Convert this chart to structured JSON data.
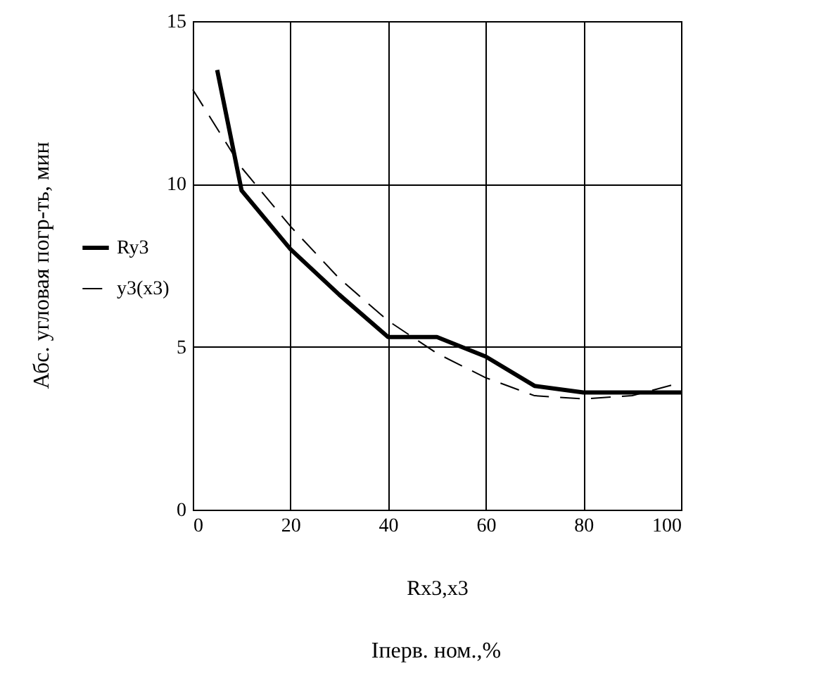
{
  "chart_data": {
    "type": "line",
    "xlabel": "Rx3,x3",
    "ylabel": "Абс. угловая погр-ть, мин",
    "annotations": [
      "Iперв. ном.,%"
    ],
    "series": [
      {
        "name": "Ry3",
        "color": "#000000",
        "line_style": "solid",
        "x": [
          5,
          10,
          20,
          30,
          40,
          50,
          60,
          70,
          80,
          90,
          100
        ],
        "values": [
          13.5,
          9.8,
          8,
          6.6,
          5.3,
          5.3,
          4.7,
          3.8,
          3.6,
          3.6,
          3.6
        ]
      },
      {
        "name": "y3(x3)",
        "color": "#000000",
        "line_style": "dashed",
        "x": [
          0,
          10,
          20,
          30,
          40,
          50,
          60,
          70,
          80,
          90,
          100
        ],
        "values": [
          12.9,
          10.5,
          8.7,
          7.1,
          5.8,
          4.8,
          4.05,
          3.5,
          3.4,
          3.5,
          3.9
        ]
      }
    ],
    "xlim": [
      0,
      100
    ],
    "ylim": [
      0,
      15
    ],
    "xticks": [
      0,
      20,
      40,
      60,
      80,
      100
    ],
    "yticks": [
      0,
      5,
      10,
      15
    ],
    "grid": true,
    "legend": "left",
    "marker": "none"
  }
}
